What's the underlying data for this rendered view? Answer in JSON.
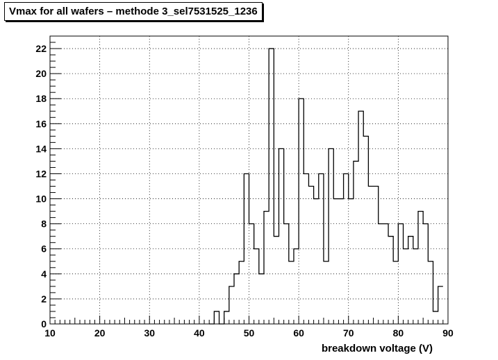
{
  "chart_data": {
    "type": "histogram",
    "title": "Vmax for all wafers – methode 3_sel7531525_1236",
    "xlabel": "breakdown voltage (V)",
    "ylabel": "",
    "xlim": [
      10,
      90
    ],
    "ylim": [
      0,
      23
    ],
    "x_ticks": [
      10,
      20,
      30,
      40,
      50,
      60,
      70,
      80,
      90
    ],
    "y_ticks": [
      0,
      2,
      4,
      6,
      8,
      10,
      12,
      14,
      16,
      18,
      20,
      22
    ],
    "grid": true,
    "bins": {
      "start": 42,
      "width": 1,
      "counts": [
        0,
        1,
        0,
        1,
        3,
        4,
        5,
        12,
        8,
        6,
        4,
        9,
        22,
        7,
        14,
        8,
        5,
        6,
        18,
        12,
        11,
        10,
        12,
        5,
        14,
        10,
        10,
        12,
        10,
        13,
        17,
        15,
        11,
        11,
        8,
        8,
        7,
        5,
        8,
        6,
        7,
        6,
        9,
        8,
        5,
        1,
        3
      ]
    }
  }
}
